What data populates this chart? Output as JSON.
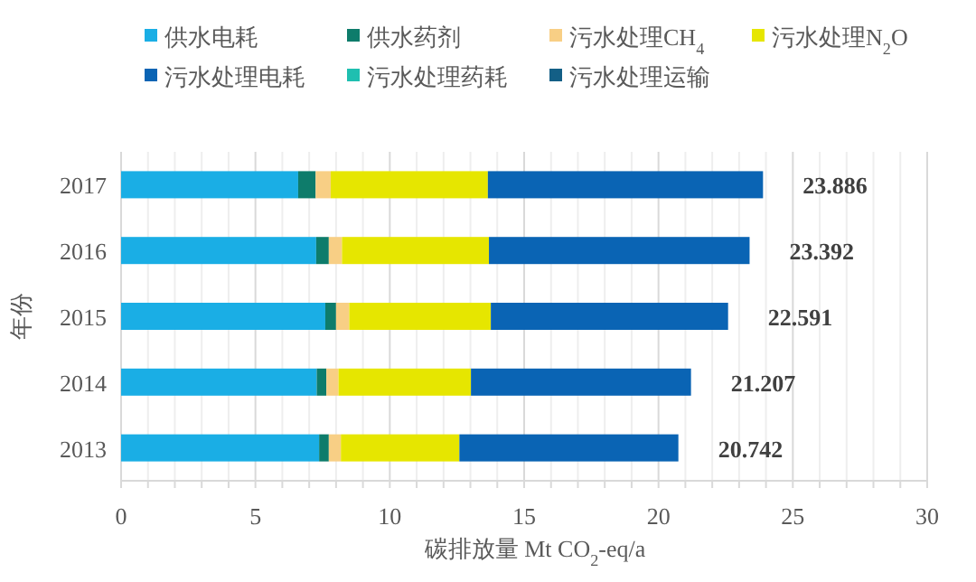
{
  "chart_data": {
    "type": "bar",
    "orientation": "horizontal",
    "stacked": true,
    "legend": "top",
    "grid": "x",
    "xlabel": "碳排放量 Mt CO$_{2}$-eq/a",
    "ylabel": "年份",
    "categories": [
      "2017",
      "2016",
      "2015",
      "2014",
      "2013"
    ],
    "xlim": [
      0,
      30
    ],
    "xticks": [
      0,
      {
        "value": 1,
        "label": null
      },
      {
        "value": 2,
        "label": null
      },
      {
        "value": 3,
        "label": null
      },
      {
        "value": 4,
        "label": null
      },
      5,
      {
        "value": 6,
        "label": null
      },
      {
        "value": 7,
        "label": null
      },
      {
        "value": 8,
        "label": null
      },
      {
        "value": 9,
        "label": null
      },
      10,
      {
        "value": 11,
        "label": null
      },
      {
        "value": 12,
        "label": null
      },
      {
        "value": 13,
        "label": null
      },
      {
        "value": 14,
        "label": null
      },
      15,
      {
        "value": 16,
        "label": null
      },
      {
        "value": 17,
        "label": null
      },
      {
        "value": 18,
        "label": null
      },
      {
        "value": 19,
        "label": null
      },
      20,
      {
        "value": 21,
        "label": null
      },
      {
        "value": 22,
        "label": null
      },
      {
        "value": 23,
        "label": null
      },
      {
        "value": 24,
        "label": null
      },
      25,
      {
        "value": 26,
        "label": null
      },
      {
        "value": 27,
        "label": null
      },
      {
        "value": 28,
        "label": null
      },
      {
        "value": 29,
        "label": null
      },
      30
    ],
    "series": [
      {
        "name": "供水电耗",
        "color": "#1aaee5",
        "values": [
          6.59,
          7.26,
          7.6,
          7.28,
          7.37
        ]
      },
      {
        "name": "供水药剂",
        "color": "#0e7c6b",
        "values": [
          0.65,
          0.47,
          0.4,
          0.36,
          0.36
        ]
      },
      {
        "name": "污水处理CH$_{4}$",
        "color": "#f8cf85",
        "values": [
          0.56,
          0.49,
          0.49,
          0.45,
          0.45
        ]
      },
      {
        "name": "污水处理N$_{2}$O",
        "color": "#e6e600",
        "values": [
          5.85,
          5.47,
          5.27,
          4.93,
          4.41
        ]
      },
      {
        "name": "污水处理电耗",
        "color": "#0a64b4",
        "values": [
          10.24,
          9.7,
          8.83,
          8.19,
          8.15
        ]
      },
      {
        "name": "污水处理药耗",
        "color": "#1fbfb0",
        "values": [
          0,
          0,
          0,
          0,
          0
        ]
      },
      {
        "name": "污水处理运输",
        "color": "#135f86",
        "values": [
          0,
          0,
          0,
          0,
          0
        ]
      }
    ],
    "totals": [
      "23.886",
      "23.392",
      "22.591",
      "21.207",
      "20.742"
    ]
  }
}
